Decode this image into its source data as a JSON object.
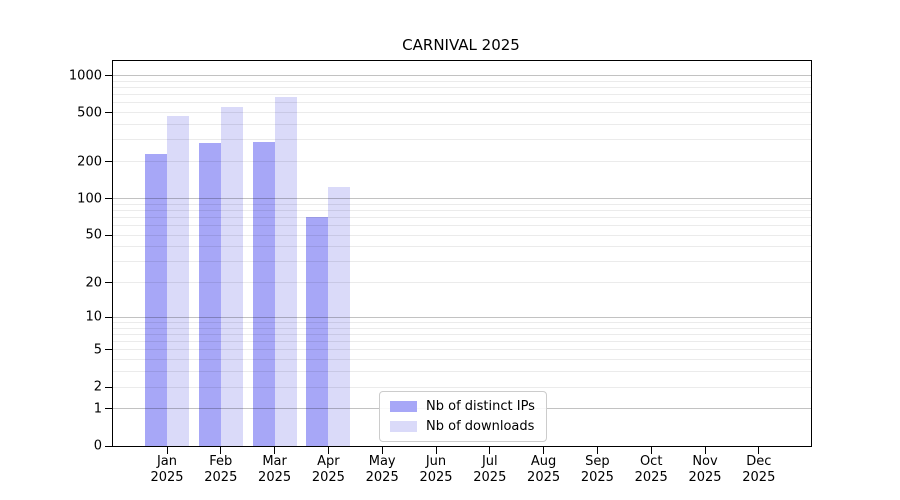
{
  "chart_data": {
    "type": "bar",
    "title": "CARNIVAL 2025",
    "categories": [
      "Jan 2025",
      "Feb 2025",
      "Mar 2025",
      "Apr 2025",
      "May 2025",
      "Jun 2025",
      "Jul 2025",
      "Aug 2025",
      "Sep 2025",
      "Oct 2025",
      "Nov 2025",
      "Dec 2025"
    ],
    "series": [
      {
        "name": "Nb of distinct IPs",
        "color": "#a7a7f7",
        "values": [
          230,
          285,
          290,
          70,
          0,
          0,
          0,
          0,
          0,
          0,
          0,
          0
        ]
      },
      {
        "name": "Nb of downloads",
        "color": "#dadaf9",
        "values": [
          470,
          555,
          665,
          125,
          0,
          0,
          0,
          0,
          0,
          0,
          0,
          0
        ]
      }
    ],
    "yticks": [
      0,
      1,
      2,
      5,
      10,
      20,
      50,
      100,
      200,
      500,
      1000
    ],
    "major_gridlines": [
      1,
      10,
      100,
      1000
    ],
    "minor_gridlines": [
      2,
      3,
      4,
      5,
      6,
      7,
      8,
      9,
      20,
      30,
      40,
      50,
      60,
      70,
      80,
      90,
      200,
      300,
      400,
      500,
      600,
      700,
      800,
      900
    ],
    "scale": "log10(1+value)",
    "ylim": [
      0,
      1300
    ],
    "xlabel": "",
    "ylabel": "",
    "grid": true,
    "legend_position": "lower-center",
    "bar_colors": {
      "distinct_ips": "#a7a7f7",
      "downloads": "#dadaf9"
    },
    "axis_color": "#000000",
    "background_color": "#ffffff"
  }
}
